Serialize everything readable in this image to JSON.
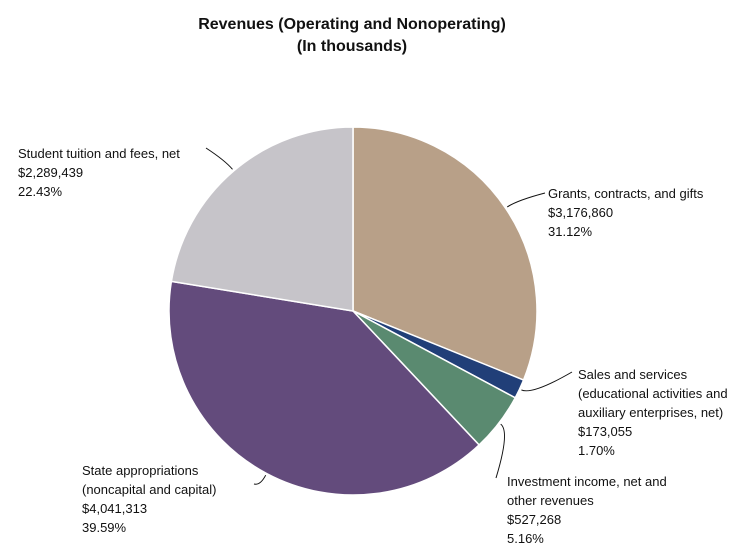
{
  "chart_data": {
    "type": "pie",
    "title": "Revenues (Operating and Nonoperating)",
    "subtitle": "(In thousands)",
    "slices": [
      {
        "key": "grants",
        "label_lines": [
          "Grants, contracts, and gifts"
        ],
        "value": "$3,176,860",
        "percent": "31.12%",
        "pct": 31.12,
        "color": "#b8a088"
      },
      {
        "key": "sales",
        "label_lines": [
          "Sales and services",
          "(educational activities and",
          "auxiliary enterprises, net)"
        ],
        "value": "$173,055",
        "percent": "1.70%",
        "pct": 1.7,
        "color": "#213f78"
      },
      {
        "key": "investment",
        "label_lines": [
          "Investment income, net and",
          "other revenues"
        ],
        "value": "$527,268",
        "percent": "5.16%",
        "pct": 5.16,
        "color": "#5a8a70"
      },
      {
        "key": "state",
        "label_lines": [
          "State appropriations",
          "(noncapital and capital)"
        ],
        "value": "$4,041,313",
        "percent": "39.59%",
        "pct": 39.59,
        "color": "#634b7c"
      },
      {
        "key": "tuition",
        "label_lines": [
          "Student tuition and fees, net"
        ],
        "value": "$2,289,439",
        "percent": "22.43%",
        "pct": 22.43,
        "color": "#c6c4c9"
      }
    ]
  }
}
